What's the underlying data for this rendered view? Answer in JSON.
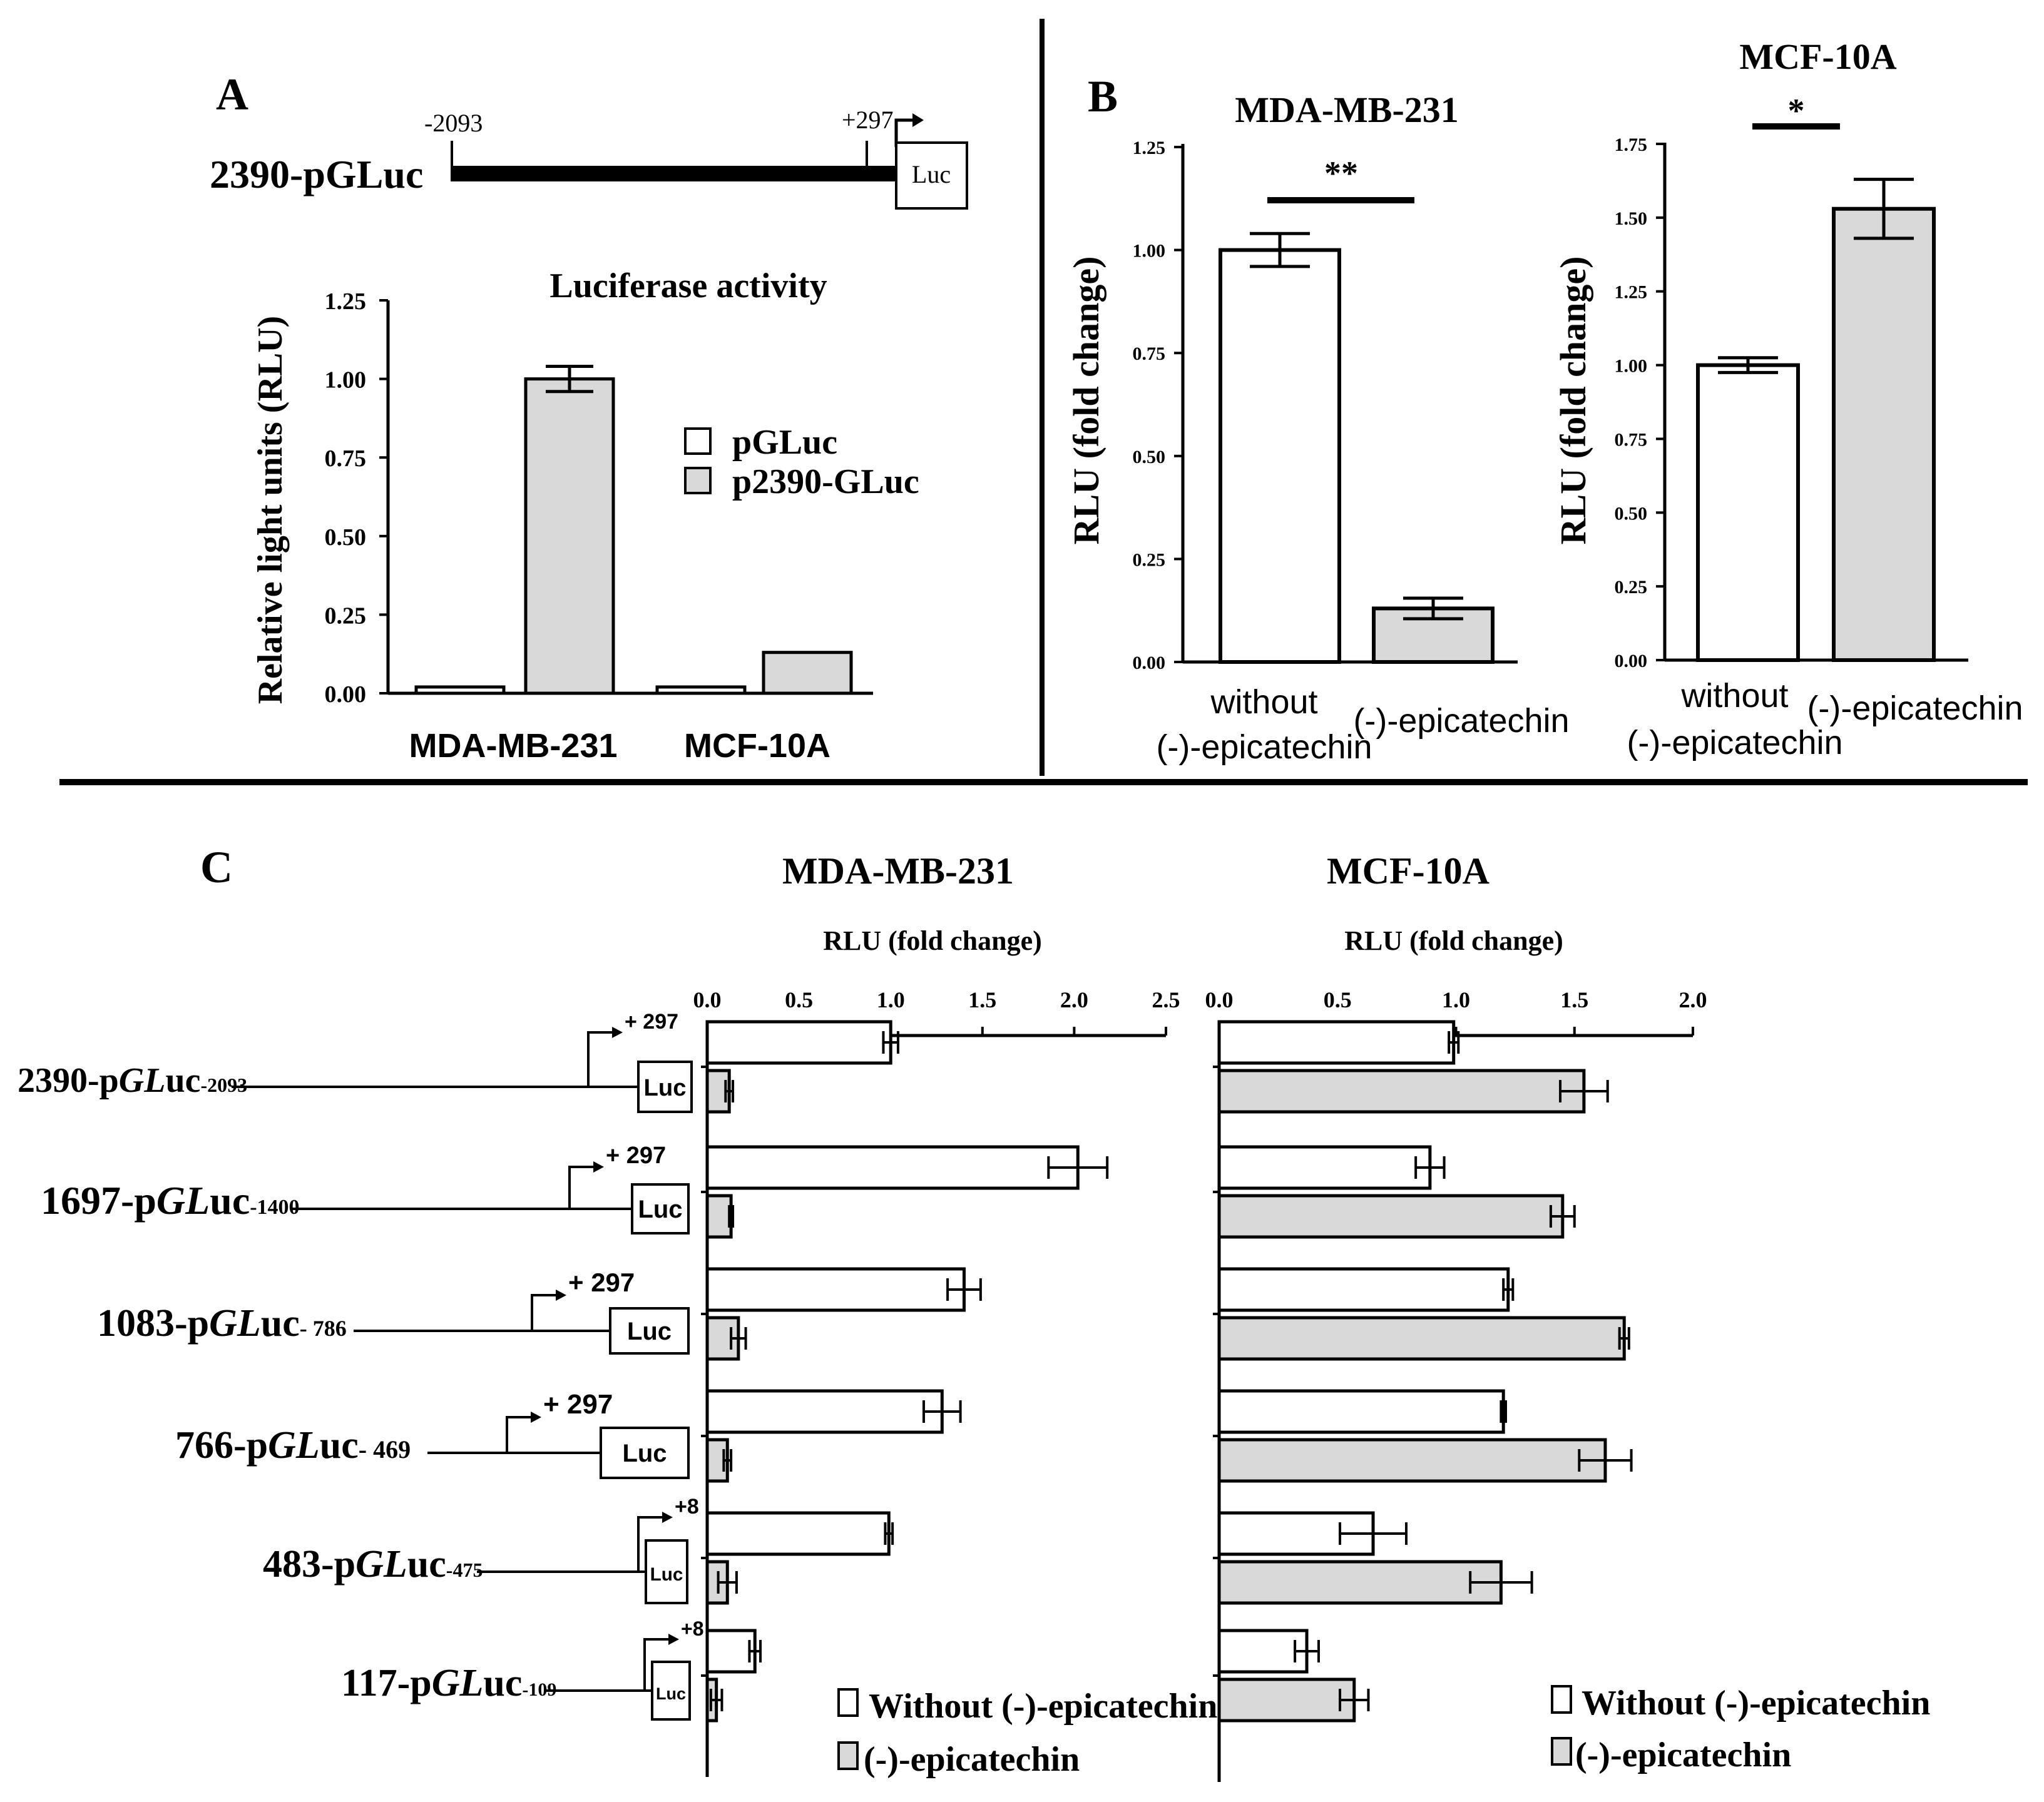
{
  "colors": {
    "white_bar": "#ffffff",
    "gray_bar": "#d9d9d9",
    "ink": "#000000"
  },
  "panel_labels": {
    "a": "A",
    "b": "B",
    "c": "C"
  },
  "panelA": {
    "construct": {
      "name": "2390-pGLuc",
      "start": "-2093",
      "end": "+297",
      "box": "Luc"
    },
    "chart": {
      "type": "bar",
      "title": "Luciferase activity",
      "ylabel": "Relative light units (RLU)",
      "categories": [
        "MDA-MB-231",
        "MCF-10A"
      ],
      "ylim": [
        0,
        1.25
      ],
      "yticks": [
        "0.00",
        "0.25",
        "0.50",
        "0.75",
        "1.00",
        "1.25"
      ],
      "series": [
        {
          "name": "pGLuc",
          "values": [
            0.02,
            0.02
          ],
          "errors": [
            0.005,
            0.005
          ],
          "color": "#ffffff"
        },
        {
          "name": "p2390-GLuc",
          "values": [
            1.0,
            0.13
          ],
          "errors": [
            0.04,
            0.01
          ],
          "color": "#d9d9d9"
        }
      ]
    }
  },
  "panelB": {
    "left": {
      "type": "bar",
      "title": "MDA-MB-231",
      "ylabel": "RLU (fold change)",
      "categories": [
        "without (-)-epicatechin",
        "(-)-epicatechin"
      ],
      "values": [
        1.0,
        0.13
      ],
      "errors": [
        0.04,
        0.025
      ],
      "colors": [
        "#ffffff",
        "#d9d9d9"
      ],
      "ylim": [
        0,
        1.25
      ],
      "yticks": [
        "0.00",
        "0.25",
        "0.50",
        "0.75",
        "1.00",
        "1.25"
      ],
      "significance": "**"
    },
    "right": {
      "type": "bar",
      "title": "MCF-10A",
      "ylabel": "RLU (fold change)",
      "categories": [
        "without (-)-epicatechin",
        "(-)-epicatechin"
      ],
      "values": [
        1.0,
        1.53
      ],
      "errors": [
        0.025,
        0.1
      ],
      "colors": [
        "#ffffff",
        "#d9d9d9"
      ],
      "ylim": [
        0,
        1.75
      ],
      "yticks": [
        "0.00",
        "0.25",
        "0.50",
        "0.75",
        "1.00",
        "1.25",
        "1.50",
        "1.75"
      ],
      "significance": "*"
    }
  },
  "panelC": {
    "constructs": [
      {
        "num": "2390",
        "suffix": "-2093",
        "tss": "+ 297",
        "box": "Luc"
      },
      {
        "num": "1697",
        "suffix": "-1400",
        "tss": "+ 297",
        "box": "Luc"
      },
      {
        "num": "1083",
        "suffix": "- 786",
        "tss": "+ 297",
        "box": "Luc"
      },
      {
        "num": "766",
        "suffix": "- 469",
        "tss": "+ 297",
        "box": "Luc"
      },
      {
        "num": "483",
        "suffix": "-475",
        "tss": "+8",
        "box": "Luc"
      },
      {
        "num": "117",
        "suffix": "-109",
        "tss": "+8",
        "box": "Luc"
      }
    ],
    "construct_mid": "-p",
    "construct_italic": "GL",
    "construct_tail": "uc",
    "charts": [
      {
        "type": "bar",
        "orientation": "horizontal",
        "title": "MDA-MB-231",
        "xlabel": "RLU (fold change)",
        "xlim": [
          0,
          2.5
        ],
        "xticks": [
          "0.0",
          "0.5",
          "1.0",
          "1.5",
          "2.0",
          "2.5"
        ],
        "series": [
          {
            "name": "Without (-)-epicatechin",
            "values": [
              1.0,
              2.02,
              1.4,
              1.28,
              0.99,
              0.26
            ],
            "errors": [
              0.04,
              0.16,
              0.09,
              0.1,
              0.02,
              0.03
            ],
            "color": "#ffffff"
          },
          {
            "name": "(-)-epicatechin",
            "values": [
              0.12,
              0.13,
              0.17,
              0.11,
              0.11,
              0.05
            ],
            "errors": [
              0.02,
              0.01,
              0.04,
              0.02,
              0.05,
              0.03
            ],
            "color": "#d9d9d9"
          }
        ]
      },
      {
        "type": "bar",
        "orientation": "horizontal",
        "title": "MCF-10A",
        "xlabel": "RLU (fold change)",
        "xlim": [
          0,
          2.0
        ],
        "xticks": [
          "0.0",
          "0.5",
          "1.0",
          "1.5",
          "2.0"
        ],
        "series": [
          {
            "name": "Without (-)-epicatechin",
            "values": [
              0.99,
              0.89,
              1.22,
              1.2,
              0.65,
              0.37
            ],
            "errors": [
              0.02,
              0.06,
              0.02,
              0.01,
              0.14,
              0.05
            ],
            "color": "#ffffff"
          },
          {
            "name": "(-)-epicatechin",
            "values": [
              1.54,
              1.45,
              1.71,
              1.63,
              1.19,
              0.57
            ],
            "errors": [
              0.1,
              0.05,
              0.02,
              0.11,
              0.13,
              0.06
            ],
            "color": "#d9d9d9"
          }
        ]
      }
    ]
  }
}
